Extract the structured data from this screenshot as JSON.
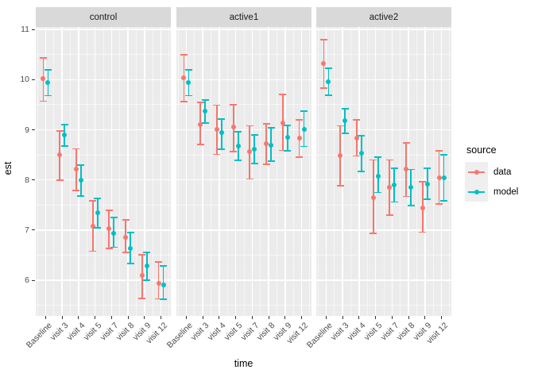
{
  "chart_data": {
    "type": "scatter",
    "variant": "faceted-pointrange-with-errorbars",
    "title": "",
    "xlabel": "time",
    "ylabel": "est",
    "categories": [
      "Baseline",
      "visit 3",
      "visit 4",
      "visit 5",
      "visit 7",
      "visit 8",
      "visit 9",
      "visit 12"
    ],
    "ylim": [
      5.29,
      11.05
    ],
    "y_major_ticks": [
      11,
      10,
      9,
      8,
      7,
      6
    ],
    "y_minor_ticks": [
      10.5,
      9.5,
      8.5,
      7.5,
      6.5,
      5.5
    ],
    "grid": "on",
    "legend": {
      "title": "source",
      "position": "right",
      "entries": [
        {
          "label": "data",
          "color": "#F8766D"
        },
        {
          "label": "model",
          "color": "#00BFC4"
        }
      ]
    },
    "facets": [
      {
        "name": "control",
        "series": [
          {
            "name": "data",
            "color": "#F8766D",
            "est": [
              10.02,
              8.51,
              8.22,
              7.08,
              7.03,
              6.86,
              6.09,
              5.94
            ],
            "lo": [
              9.57,
              8.0,
              7.79,
              6.58,
              6.63,
              6.55,
              5.64,
              5.63
            ],
            "hi": [
              10.43,
              8.98,
              8.62,
              7.58,
              7.4,
              7.2,
              6.51,
              6.37
            ]
          },
          {
            "name": "model",
            "color": "#00BFC4",
            "est": [
              9.95,
              8.9,
              8.0,
              7.34,
              6.94,
              6.63,
              6.28,
              5.9
            ],
            "lo": [
              9.68,
              8.68,
              7.68,
              7.05,
              6.66,
              6.33,
              6.0,
              5.62
            ],
            "hi": [
              10.2,
              9.1,
              8.3,
              7.63,
              7.25,
              6.95,
              6.55,
              6.29
            ]
          }
        ]
      },
      {
        "name": "active1",
        "series": [
          {
            "name": "data",
            "color": "#F8766D",
            "est": [
              10.03,
              9.11,
              9.01,
              9.06,
              8.57,
              8.72,
              9.14,
              8.83
            ],
            "lo": [
              9.56,
              8.71,
              8.51,
              8.57,
              8.02,
              8.31,
              8.59,
              8.46
            ],
            "hi": [
              10.49,
              9.55,
              9.49,
              9.5,
              9.08,
              9.12,
              9.7,
              9.2
            ]
          },
          {
            "name": "model",
            "color": "#00BFC4",
            "est": [
              9.94,
              9.38,
              8.94,
              8.68,
              8.62,
              8.7,
              8.85,
              9.01
            ],
            "lo": [
              9.68,
              9.14,
              8.61,
              8.39,
              8.33,
              8.38,
              8.58,
              8.67
            ],
            "hi": [
              10.19,
              9.6,
              9.22,
              8.96,
              8.9,
              9.04,
              9.09,
              9.37
            ]
          }
        ]
      },
      {
        "name": "active2",
        "series": [
          {
            "name": "data",
            "color": "#F8766D",
            "est": [
              10.33,
              8.48,
              8.83,
              7.65,
              7.86,
              8.21,
              7.45,
              8.05
            ],
            "lo": [
              9.83,
              7.88,
              8.48,
              6.93,
              7.3,
              7.67,
              6.96,
              7.52
            ],
            "hi": [
              10.8,
              9.08,
              9.2,
              8.4,
              8.4,
              8.74,
              7.96,
              8.58
            ]
          },
          {
            "name": "model",
            "color": "#00BFC4",
            "est": [
              9.96,
              9.18,
              8.53,
              8.08,
              7.9,
              7.86,
              7.91,
              8.05
            ],
            "lo": [
              9.69,
              8.93,
              8.17,
              7.75,
              7.56,
              7.49,
              7.61,
              7.59
            ],
            "hi": [
              10.23,
              9.42,
              8.88,
              8.46,
              8.23,
              8.21,
              8.23,
              8.5
            ]
          }
        ]
      }
    ]
  },
  "theme": {
    "background": "#FFFFFF",
    "panel_bg": "#EBEBEB",
    "strip_bg": "#D9D9D9",
    "grid_major_color": "#FFFFFF",
    "grid_minor_color": "rgba(255,255,255,0.55)",
    "tick_mark_color": "#333333",
    "tick_text_color": "#4D4D4D",
    "strip_text_color": "#1A1A1A",
    "legend_key_bg": "#EFEFEF"
  }
}
